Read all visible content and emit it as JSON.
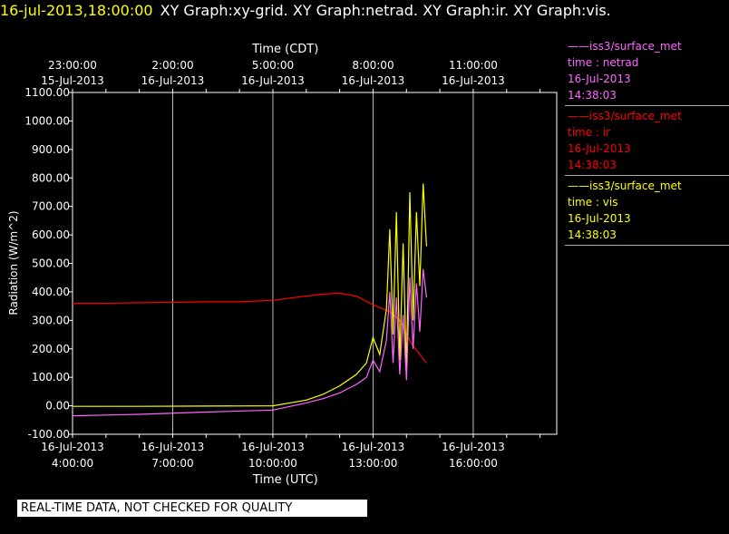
{
  "header": {
    "timestamp": "16-jul-2013,18:00:00",
    "graph_titles": "XY Graph:xy-grid.  XY Graph:netrad.  XY Graph:ir.  XY Graph:vis."
  },
  "legend": [
    {
      "source": "iss3/surface_met",
      "var": "time : netrad",
      "date": "16-Jul-2013",
      "time": "14:38:03",
      "color": "#ff66ff"
    },
    {
      "source": "iss3/surface_met",
      "var": "time : ir",
      "date": "16-Jul-2013",
      "time": "14:38:03",
      "color": "#ff0000"
    },
    {
      "source": "iss3/surface_met",
      "var": "time : vis",
      "date": "16-Jul-2013",
      "time": "14:38:03",
      "color": "#ffff00"
    }
  ],
  "footer": "REAL-TIME DATA, NOT CHECKED FOR QUALITY",
  "chart_data": {
    "type": "line",
    "ylabel": "Radiation (W/m^2)",
    "xlabel_bottom": "Time (UTC)",
    "xlabel_top": "Time (CDT)",
    "ylim": [
      -100,
      1100
    ],
    "xlim_utc_hours": [
      4,
      18.5
    ],
    "grid": true,
    "yticks": [
      {
        "value": -100,
        "label": "-100.00"
      },
      {
        "value": 0,
        "label": "0.00"
      },
      {
        "value": 100,
        "label": "100.00"
      },
      {
        "value": 200,
        "label": "200.00"
      },
      {
        "value": 300,
        "label": "300.00"
      },
      {
        "value": 400,
        "label": "400.00"
      },
      {
        "value": 500,
        "label": "500.00"
      },
      {
        "value": 600,
        "label": "600.00"
      },
      {
        "value": 700,
        "label": "700.00"
      },
      {
        "value": 800,
        "label": "800.00"
      },
      {
        "value": 900,
        "label": "900.00"
      },
      {
        "value": 1000,
        "label": "1000.00"
      },
      {
        "value": 1100,
        "label": "1100.00"
      }
    ],
    "xticks_bottom": [
      {
        "hour": 4,
        "date": "16-Jul-2013",
        "time": "4:00:00"
      },
      {
        "hour": 7,
        "date": "16-Jul-2013",
        "time": "7:00:00"
      },
      {
        "hour": 10,
        "date": "16-Jul-2013",
        "time": "10:00:00"
      },
      {
        "hour": 13,
        "date": "16-Jul-2013",
        "time": "13:00:00"
      },
      {
        "hour": 16,
        "date": "16-Jul-2013",
        "time": "16:00:00"
      }
    ],
    "xticks_top": [
      {
        "hour": 4,
        "time": "23:00:00",
        "date": "15-Jul-2013"
      },
      {
        "hour": 7,
        "time": "2:00:00",
        "date": "16-Jul-2013"
      },
      {
        "hour": 10,
        "time": "5:00:00",
        "date": "16-Jul-2013"
      },
      {
        "hour": 13,
        "time": "8:00:00",
        "date": "16-Jul-2013"
      },
      {
        "hour": 16,
        "time": "11:00:00",
        "date": "16-Jul-2013"
      }
    ],
    "series": [
      {
        "key": "ir",
        "color": "#ff0000",
        "x": [
          4.0,
          5.0,
          6.0,
          7.0,
          8.0,
          9.0,
          10.0,
          10.5,
          11.0,
          11.5,
          12.0,
          12.5,
          13.0,
          13.5,
          13.8,
          14.0,
          14.2,
          14.4,
          14.6
        ],
        "y": [
          360,
          360,
          362,
          363,
          365,
          365,
          370,
          378,
          385,
          392,
          395,
          385,
          355,
          330,
          300,
          250,
          210,
          180,
          150
        ]
      },
      {
        "key": "vis",
        "color": "#ffff00",
        "x": [
          4.0,
          6.0,
          8.0,
          10.0,
          11.0,
          11.5,
          12.0,
          12.5,
          12.8,
          13.0,
          13.2,
          13.4,
          13.5,
          13.6,
          13.7,
          13.8,
          13.9,
          14.0,
          14.1,
          14.2,
          14.3,
          14.4,
          14.5,
          14.6
        ],
        "y": [
          -2,
          -2,
          -1,
          0,
          20,
          40,
          70,
          110,
          150,
          240,
          180,
          340,
          620,
          250,
          680,
          160,
          570,
          120,
          750,
          300,
          680,
          420,
          780,
          560
        ]
      },
      {
        "key": "netrad",
        "color": "#ff66ff",
        "x": [
          4.0,
          6.0,
          8.0,
          10.0,
          11.0,
          11.5,
          12.0,
          12.5,
          12.8,
          13.0,
          13.2,
          13.4,
          13.5,
          13.6,
          13.7,
          13.8,
          13.9,
          14.0,
          14.1,
          14.2,
          14.3,
          14.4,
          14.5,
          14.6
        ],
        "y": [
          -35,
          -30,
          -22,
          -15,
          10,
          25,
          45,
          75,
          100,
          160,
          120,
          230,
          400,
          150,
          380,
          110,
          320,
          90,
          450,
          200,
          430,
          260,
          480,
          380
        ]
      }
    ]
  }
}
